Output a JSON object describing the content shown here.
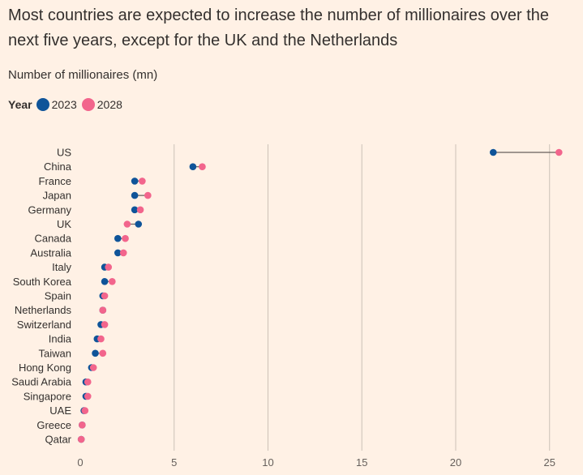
{
  "title": "Most countries are expected to increase the number of millionaires over the next five years, except for the UK and the Netherlands",
  "subtitle": "Number of millionaires (mn)",
  "legend": {
    "title": "Year",
    "items": [
      {
        "label": "2023",
        "color": "#0f5499"
      },
      {
        "label": "2028",
        "color": "#f2658c"
      }
    ]
  },
  "chart_data": {
    "type": "dumbbell",
    "categories": [
      "US",
      "China",
      "France",
      "Japan",
      "Germany",
      "UK",
      "Canada",
      "Australia",
      "Italy",
      "South Korea",
      "Spain",
      "Netherlands",
      "Switzerland",
      "India",
      "Taiwan",
      "Hong Kong",
      "Saudi Arabia",
      "Singapore",
      "UAE",
      "Greece",
      "Qatar"
    ],
    "series": [
      {
        "name": "2023",
        "color": "#0f5499",
        "values": [
          22.0,
          6.0,
          2.9,
          2.9,
          2.9,
          3.1,
          2.0,
          2.0,
          1.3,
          1.3,
          1.2,
          1.2,
          1.1,
          0.9,
          0.8,
          0.6,
          0.3,
          0.3,
          0.2,
          0.1,
          0.05
        ]
      },
      {
        "name": "2028",
        "color": "#f2658c",
        "values": [
          25.5,
          6.5,
          3.3,
          3.6,
          3.2,
          2.5,
          2.4,
          2.3,
          1.5,
          1.7,
          1.3,
          1.2,
          1.3,
          1.1,
          1.2,
          0.7,
          0.4,
          0.4,
          0.25,
          0.1,
          0.05
        ]
      }
    ],
    "xticks": [
      0,
      5,
      10,
      15,
      20,
      25
    ],
    "xlim": [
      0,
      26
    ],
    "grid": true
  }
}
